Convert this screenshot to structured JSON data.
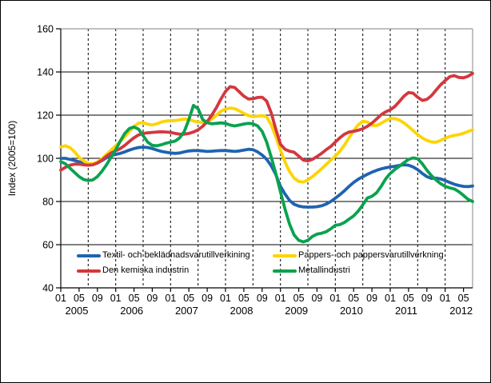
{
  "chart_data": {
    "type": "line",
    "title": "",
    "ylabel": "Index (2005=100)",
    "x_unit": "month",
    "x_start": "2005-01",
    "x_end": "2012-07",
    "months_total": 91,
    "grid": {
      "horizontal": "solid 20-step",
      "vertical": "dashed every 6 months"
    },
    "legend_position": "bottom-left-inside",
    "y_axis": {
      "range": [
        40,
        160
      ],
      "ticks": [
        40,
        60,
        80,
        100,
        120,
        140,
        160
      ]
    },
    "x_axis": {
      "years": [
        "2005",
        "2006",
        "2007",
        "2008",
        "2009",
        "2010",
        "2011",
        "2012"
      ],
      "month_tick_labels": [
        "01",
        "05",
        "09"
      ],
      "last_year_month_labels": [
        "01",
        "05"
      ]
    },
    "series": [
      {
        "name": "Textil- och beklädnadsvarutillverkining",
        "color": "#1f63b0",
        "values": [
          100,
          100,
          99.5,
          99,
          98.4,
          97.8,
          97.3,
          97.2,
          97.8,
          99,
          100.3,
          101.2,
          101.8,
          102.3,
          103,
          103.8,
          104.5,
          105,
          105.2,
          105,
          104.5,
          103.8,
          103.2,
          102.8,
          102.5,
          102.3,
          102.5,
          103,
          103.4,
          103.6,
          103.6,
          103.4,
          103.2,
          103.3,
          103.5,
          103.6,
          103.6,
          103.4,
          103.2,
          103.4,
          103.8,
          104.2,
          104,
          103,
          101.5,
          99.5,
          96.5,
          92.5,
          87,
          83.5,
          80.5,
          78.7,
          77.9,
          77.5,
          77.4,
          77.4,
          77.6,
          78,
          78.8,
          80,
          81.5,
          83.2,
          85,
          87,
          88.8,
          90.3,
          91.5,
          92.6,
          93.6,
          94.4,
          95.1,
          95.6,
          96,
          96.3,
          96.7,
          97,
          96.8,
          96,
          94.7,
          93,
          91.5,
          90.7,
          90.8,
          90.5,
          89.7,
          88.8,
          88,
          87.4,
          87,
          86.9,
          87.2
        ]
      },
      {
        "name": "Pappers- och pappersvarutillverkning",
        "color": "#fed402",
        "values": [
          105.3,
          105.8,
          105,
          103,
          100.5,
          98.8,
          97.6,
          97.5,
          98.3,
          99.8,
          101.8,
          103.8,
          105.8,
          107.8,
          110,
          112.5,
          114.8,
          116.3,
          116.5,
          115.8,
          115.5,
          116,
          116.8,
          117.3,
          117.5,
          117.5,
          117.8,
          118.2,
          118,
          117.3,
          116.8,
          116.5,
          117,
          118.2,
          120,
          121.8,
          122.8,
          123.3,
          123,
          122,
          120.8,
          119.8,
          119.3,
          119.5,
          119.8,
          119.2,
          115.5,
          110,
          103.8,
          98.3,
          93.8,
          90.8,
          89.3,
          89,
          90,
          91.5,
          93.3,
          95.2,
          97.2,
          99.2,
          101,
          103.3,
          106.2,
          109.5,
          112.8,
          115.5,
          117.2,
          116.8,
          115.3,
          115.2,
          116.2,
          117.5,
          118.4,
          118.4,
          117.7,
          116.4,
          114.7,
          112.8,
          111,
          109.4,
          108.3,
          107.6,
          107.5,
          108.3,
          109.3,
          110.1,
          110.6,
          111,
          111.6,
          112.4,
          113.2
        ]
      },
      {
        "name": "Den kemiska industrin",
        "color": "#d4373e",
        "values": [
          94.5,
          95.8,
          96.8,
          97.3,
          97.3,
          97,
          96.8,
          97,
          97.8,
          99.2,
          101,
          102.5,
          103.5,
          104.5,
          106,
          107.8,
          109.5,
          110.8,
          111.5,
          111.8,
          112,
          112.2,
          112.3,
          112.2,
          112,
          111.5,
          111.2,
          111.2,
          111.5,
          112.2,
          113.2,
          114.8,
          117,
          120,
          123.5,
          127.5,
          131,
          133.2,
          132.8,
          130.8,
          128.8,
          127.5,
          127.6,
          128.2,
          128.3,
          126.5,
          121,
          113.5,
          106.5,
          104.2,
          103.3,
          102.8,
          101,
          99.2,
          98.8,
          99.5,
          100.8,
          102.3,
          104,
          105.5,
          107.5,
          109.5,
          111.2,
          112.2,
          112.5,
          113,
          113.7,
          114.8,
          116.3,
          118.2,
          120.2,
          121.5,
          122.5,
          124,
          126.3,
          128.8,
          130.5,
          130.2,
          128.3,
          126.8,
          127.3,
          129,
          131.5,
          134,
          136,
          137.8,
          138.3,
          137.5,
          137.3,
          138,
          139.3
        ]
      },
      {
        "name": "Metallindustri",
        "color": "#0aa24f",
        "values": [
          98.5,
          97.5,
          95.5,
          93.5,
          91.5,
          90.2,
          89.7,
          90,
          91.5,
          94,
          97,
          100.5,
          104,
          108,
          111.5,
          113.8,
          114.5,
          113.5,
          110.5,
          107.5,
          106,
          105.8,
          106.3,
          107,
          107.5,
          108,
          109.5,
          112.5,
          118,
          124.5,
          123,
          118,
          116.5,
          116,
          116.2,
          116.4,
          116.2,
          115.4,
          115,
          115.4,
          115.9,
          116.2,
          116,
          115,
          112.5,
          107.5,
          100.5,
          93,
          84.5,
          76.5,
          69.5,
          64.5,
          62,
          61.3,
          62,
          63.8,
          64.9,
          65.3,
          66,
          67.3,
          69,
          69.3,
          70.3,
          71.8,
          73.3,
          75.5,
          78.5,
          81.6,
          82.4,
          84,
          87,
          90.5,
          93,
          94.8,
          96.3,
          98,
          99.5,
          100.2,
          99.8,
          97.5,
          94.5,
          92,
          90,
          88.3,
          87,
          86.3,
          85.8,
          84.5,
          82.8,
          81,
          80
        ]
      }
    ]
  }
}
